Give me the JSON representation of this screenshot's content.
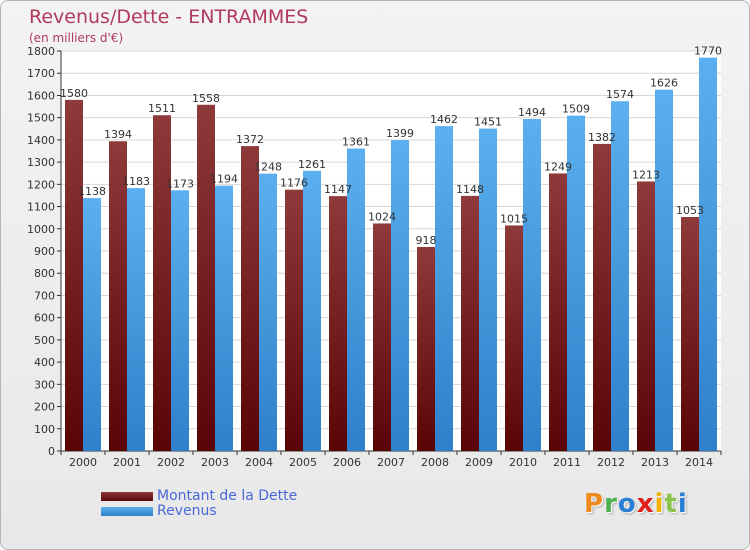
{
  "title": "Revenus/Dette - ENTRAMMES",
  "subtitle": "(en milliers d'€)",
  "logo_text": "Proxiti",
  "colors": {
    "dette_top": "#8e3a3a",
    "dette_bottom": "#5a0505",
    "revenus_top": "#5ab0ef",
    "revenus_bottom": "#2f80c8",
    "title": "#b03a5b",
    "legend_text": "#4a68d8",
    "logo_letters": [
      "#f08a1c",
      "#4caf50",
      "#2a7fd4",
      "#e0201c",
      "#f0b400",
      "#8bc34a",
      "#2a7fd4"
    ]
  },
  "chart_data": {
    "type": "bar",
    "categories": [
      "2000",
      "2001",
      "2002",
      "2003",
      "2004",
      "2005",
      "2006",
      "2007",
      "2008",
      "2009",
      "2010",
      "2011",
      "2012",
      "2013",
      "2014"
    ],
    "series": [
      {
        "name": "Montant de la Dette",
        "values": [
          1580,
          1394,
          1511,
          1558,
          1372,
          1176,
          1147,
          1024,
          918,
          1148,
          1015,
          1249,
          1382,
          1213,
          1053
        ],
        "labels": [
          "1580",
          "1394",
          "1511",
          "1558",
          "1372",
          "1176",
          "1147",
          "1024",
          "918",
          "1148",
          "1015",
          "1249",
          "1382",
          "1213",
          "1053"
        ]
      },
      {
        "name": "Revenus",
        "values": [
          1138,
          1183,
          1173,
          1194,
          1248,
          1261,
          1361,
          1399,
          1462,
          1451,
          1494,
          1509,
          1574,
          1626,
          1770
        ],
        "labels": [
          "1138",
          "1183",
          "1173",
          "1194",
          "1248",
          "1261",
          "1361",
          "1399",
          "1462",
          "1451",
          "1494",
          "1509",
          "1574",
          "1626",
          "1770"
        ]
      }
    ],
    "ylim": [
      0,
      1800
    ],
    "yticks": [
      "0",
      "100",
      "200",
      "300",
      "400",
      "500",
      "600",
      "700",
      "800",
      "900",
      "1000",
      "1100",
      "1200",
      "1300",
      "1400",
      "1500",
      "1600",
      "1700",
      "1800"
    ],
    "grid": true,
    "legend_position": "bottom-left"
  }
}
